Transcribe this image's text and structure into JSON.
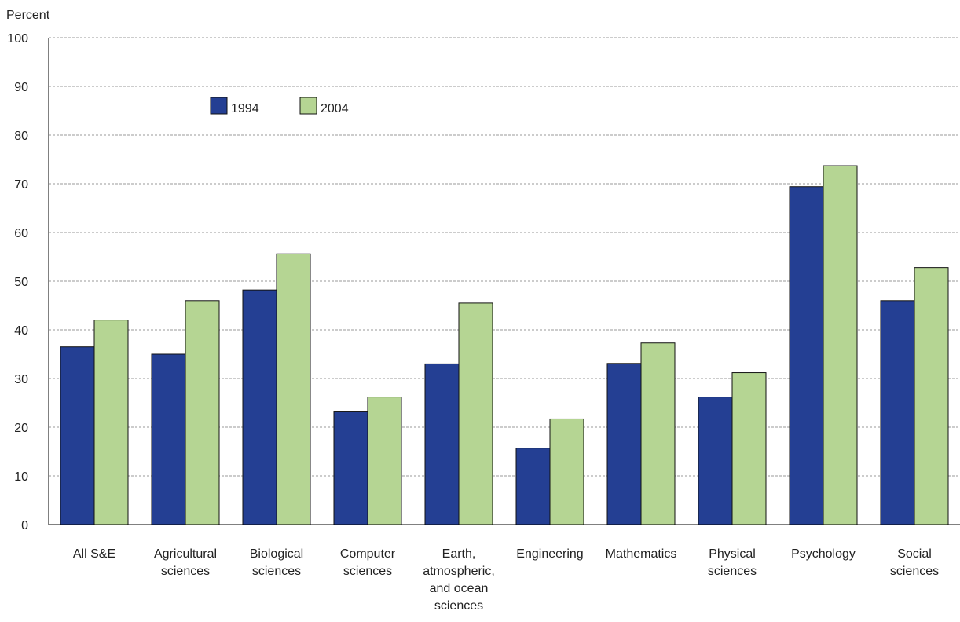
{
  "chart_data": {
    "type": "bar",
    "ylabel": "Percent",
    "xlabel": "",
    "ylim": [
      0,
      100
    ],
    "yticks": [
      0,
      10,
      20,
      30,
      40,
      50,
      60,
      70,
      80,
      90,
      100
    ],
    "grid": true,
    "legend_position": "top-left",
    "categories": [
      [
        "All S&E"
      ],
      [
        "Agricultural",
        "sciences"
      ],
      [
        "Biological",
        "sciences"
      ],
      [
        "Computer",
        "sciences"
      ],
      [
        "Earth,",
        "atmospheric,",
        "and ocean",
        "sciences"
      ],
      [
        "Engineering"
      ],
      [
        "Mathematics"
      ],
      [
        "Physical",
        "sciences"
      ],
      [
        "Psychology"
      ],
      [
        "Social",
        "sciences"
      ]
    ],
    "series": [
      {
        "name": "1994",
        "color": "#243f93",
        "values": [
          36.5,
          35,
          48.2,
          23.3,
          33,
          15.7,
          33.1,
          26.2,
          69.4,
          46
        ]
      },
      {
        "name": "2004",
        "color": "#b5d593",
        "values": [
          42,
          46,
          55.6,
          26.2,
          45.5,
          21.7,
          37.3,
          31.2,
          73.7,
          52.8
        ]
      }
    ]
  }
}
